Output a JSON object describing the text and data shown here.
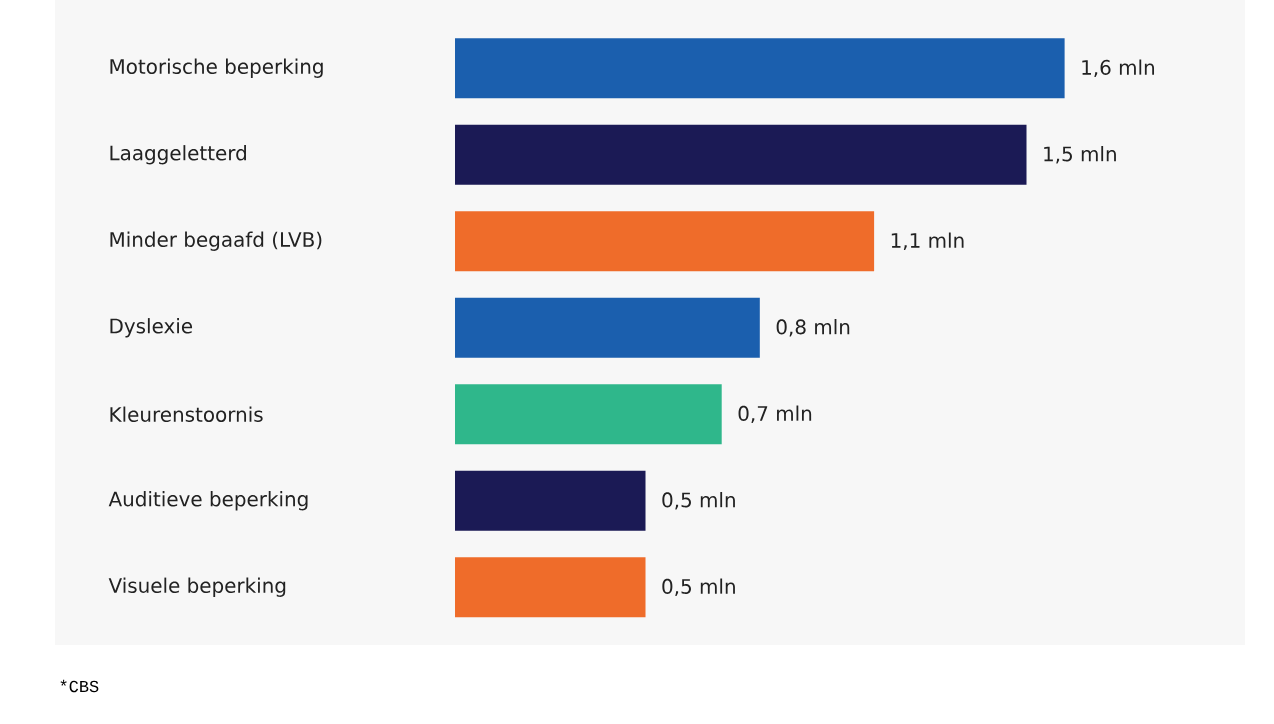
{
  "chart_data": {
    "type": "bar",
    "orientation": "horizontal",
    "categories": [
      "Motorische beperking",
      "Laaggeletterd",
      "Minder begaafd (LVB)",
      "Dyslexie",
      "Kleurenstoornis",
      "Auditieve beperking",
      "Visuele beperking"
    ],
    "values": [
      1.6,
      1.5,
      1.1,
      0.8,
      0.7,
      0.5,
      0.5
    ],
    "colors": [
      "#1b5fae",
      "#1b1a55",
      "#ef6c2a",
      "#1b5fae",
      "#2fb78b",
      "#1b1a55",
      "#ef6c2a"
    ],
    "value_labels": [
      "1,6 mln",
      "1,5 mln",
      "1,1 mln",
      "0,8 mln",
      "0,7 mln",
      "0,5 mln",
      "0,5 mln"
    ],
    "annotations": [
      "*CBS"
    ]
  }
}
